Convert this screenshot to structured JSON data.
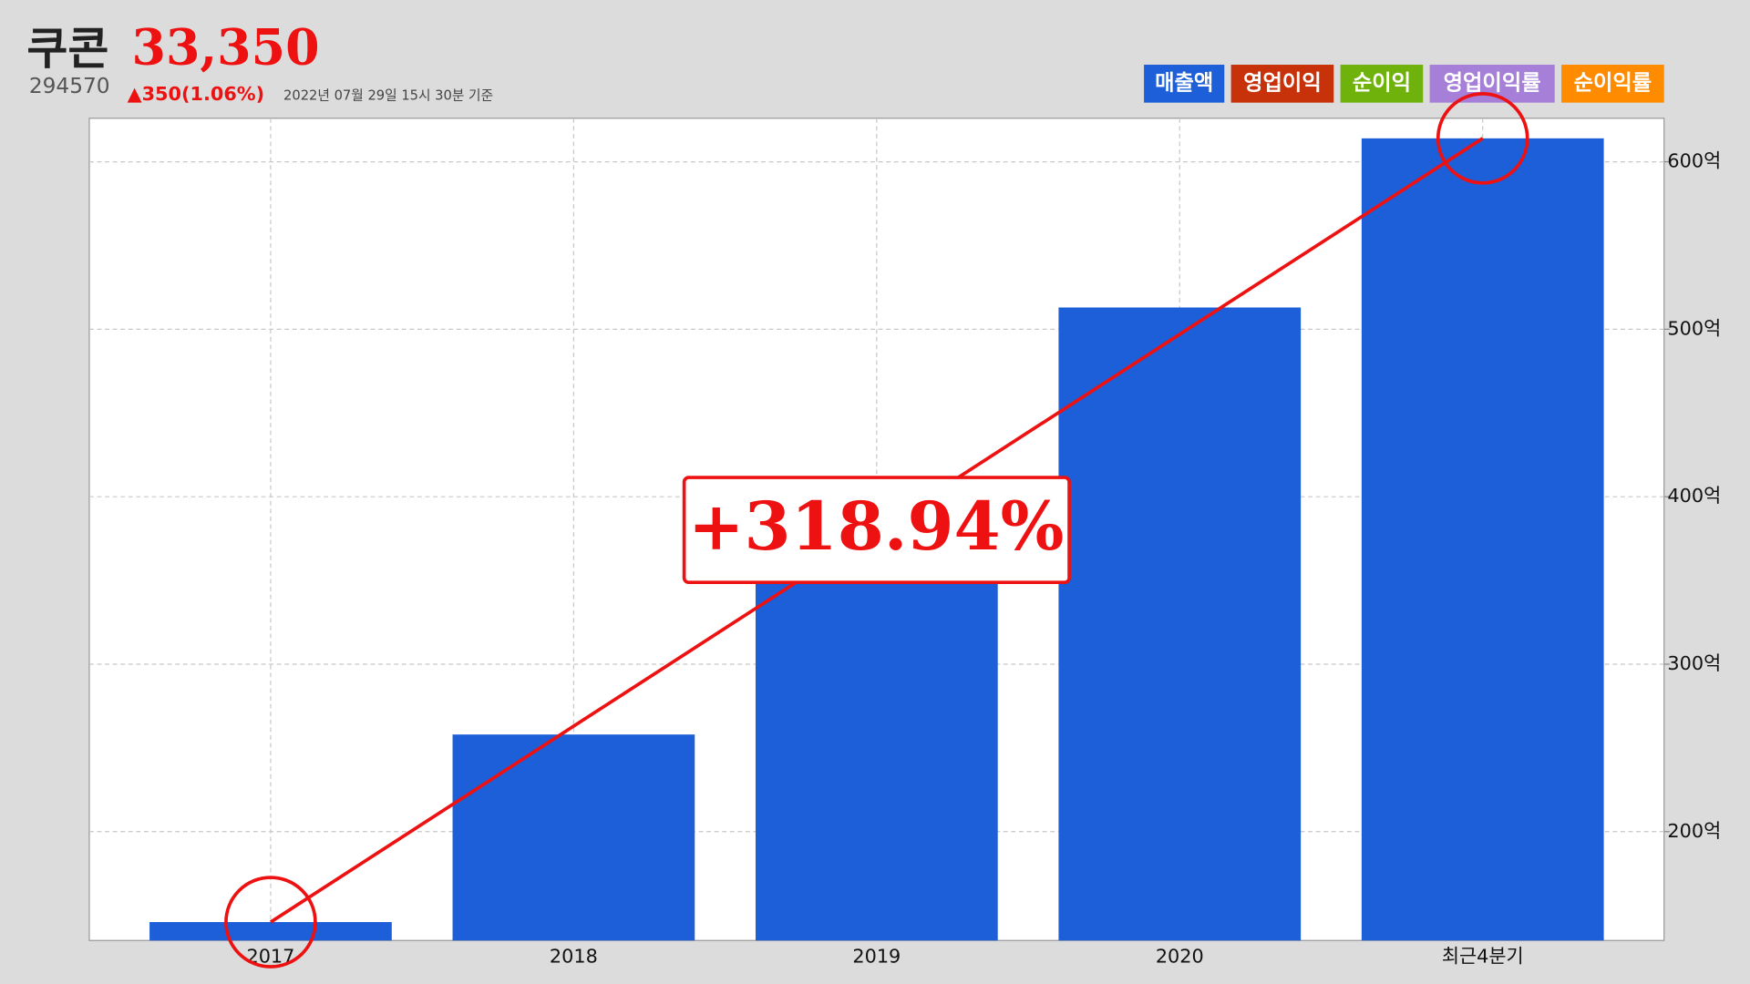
{
  "chart_data": {
    "type": "bar",
    "title": "쿠콘",
    "price": "33,350",
    "code": "294570",
    "change": "▲350(1.06%)",
    "timestamp": "2022년 07월 29일 15시 30분 기준",
    "categories": [
      "2017",
      "2018",
      "2019",
      "2020",
      "최근4분기"
    ],
    "series": [
      {
        "name": "매출액",
        "color": "#1c5fd8",
        "values": [
          146,
          258,
          360,
          513,
          614
        ]
      }
    ],
    "legend_buttons": [
      {
        "name": "영업이익",
        "color": "#c8320a"
      },
      {
        "name": "순이익",
        "color": "#6fb20c"
      },
      {
        "name": "영업이익률",
        "color": "#a57fd8"
      },
      {
        "name": "순이익률",
        "color": "#ff8c00"
      }
    ],
    "ylim": [
      135,
      626
    ],
    "yticks": [
      {
        "value": 200,
        "label": "200억"
      },
      {
        "value": 300,
        "label": "300억"
      },
      {
        "value": 400,
        "label": "400억"
      },
      {
        "value": 500,
        "label": "500억"
      },
      {
        "value": 600,
        "label": "600억"
      }
    ],
    "grid": true,
    "annotation": "+318.94%"
  }
}
